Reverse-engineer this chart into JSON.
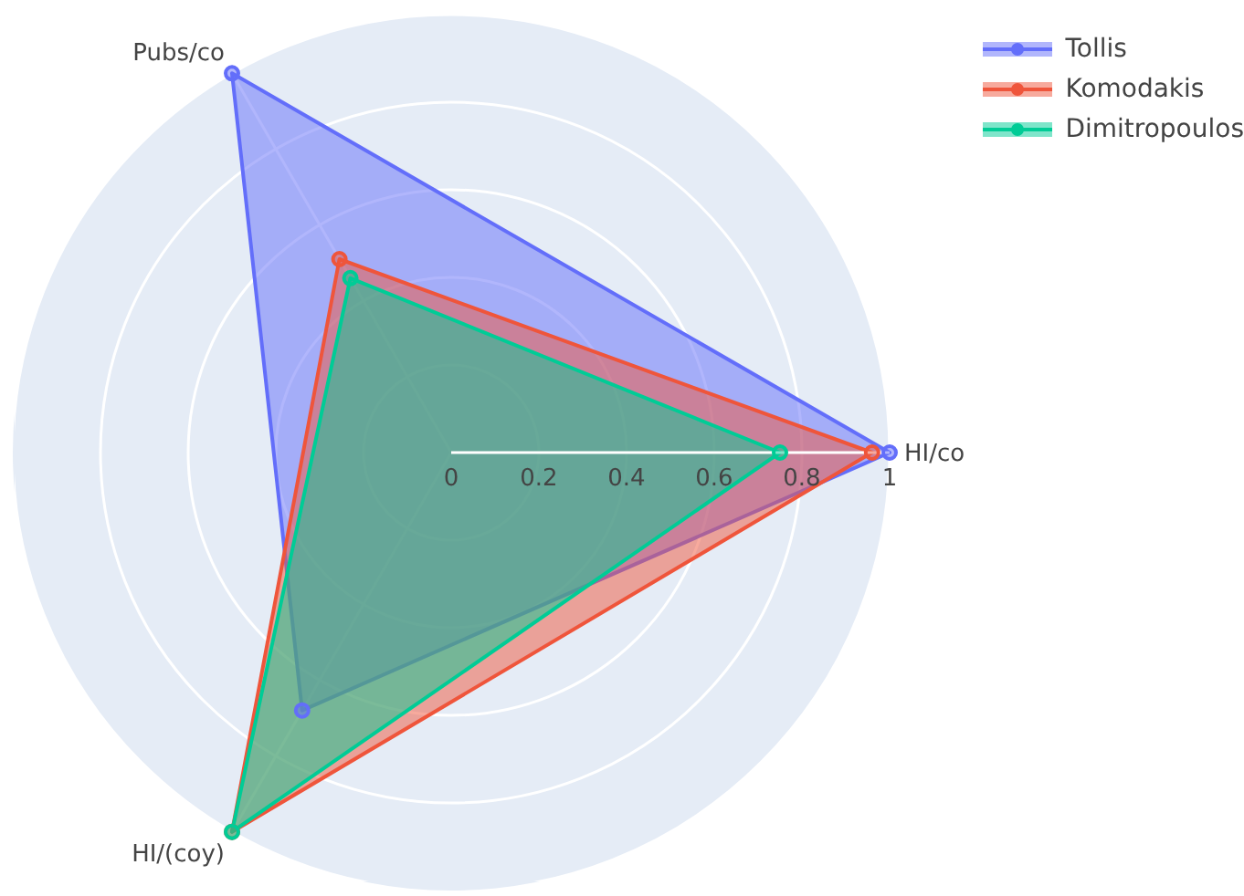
{
  "chart_data": {
    "type": "radar",
    "categories": [
      "HI/co",
      "HI/(coy)",
      "Pubs/co"
    ],
    "series": [
      {
        "name": "Tollis",
        "color": "#636efa",
        "values": [
          1,
          0.68,
          1
        ]
      },
      {
        "name": "Komodakis",
        "color": "#ef553b",
        "values": [
          0.96,
          1,
          0.51
        ]
      },
      {
        "name": "Dimitropoulos",
        "color": "#00cc96",
        "values": [
          0.75,
          1,
          0.46
        ]
      }
    ],
    "ylim": [
      0,
      1
    ],
    "yticks": [
      0,
      0.2,
      0.4,
      0.6,
      0.8,
      1
    ],
    "grid": true,
    "legend": "top right",
    "marker": "circle"
  }
}
